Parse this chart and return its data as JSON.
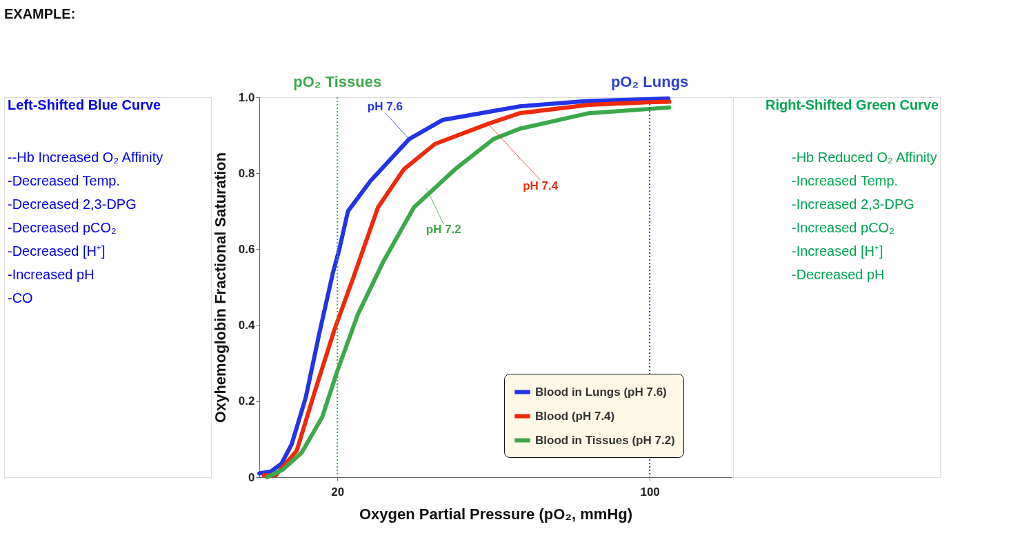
{
  "chart_data": {
    "type": "line",
    "xlabel": "Oxygen Partial Pressure (pO₂, mmHg)",
    "ylabel": "Oxyhemoglobin Fractional Saturation",
    "xlim": [
      0,
      121
    ],
    "ylim": [
      0,
      1
    ],
    "xticks": [
      20,
      100
    ],
    "yticks": [
      {
        "value": 0,
        "label": "0"
      },
      0.2,
      0.4,
      0.6,
      0.8,
      {
        "value": 1,
        "label": "1.0"
      }
    ],
    "grid": false,
    "legend": "bottom right",
    "line_style": "solid",
    "marker": "none",
    "series": [
      {
        "name": "Blood in Lungs (pH 7.6)",
        "color": "#2233e8",
        "x": [
          0,
          3,
          5.7,
          8.3,
          11.9,
          15.4,
          18.9,
          20.5,
          22.7,
          28.5,
          38.4,
          46.9,
          66.7,
          84,
          100,
          104.8
        ],
        "values": [
          0.01,
          0.015,
          0.036,
          0.087,
          0.21,
          0.38,
          0.54,
          0.6,
          0.7,
          0.78,
          0.89,
          0.94,
          0.976,
          0.99,
          0.995,
          0.997
        ]
      },
      {
        "name": "Blood (pH 7.4)",
        "color": "#ee2a0a",
        "x": [
          1.2,
          4.2,
          9.6,
          14.2,
          19.3,
          23.9,
          30.4,
          37,
          45,
          58.6,
          66.7,
          84.4,
          99.8,
          105
        ],
        "values": [
          0.005,
          0.005,
          0.07,
          0.225,
          0.39,
          0.52,
          0.71,
          0.81,
          0.877,
          0.93,
          0.958,
          0.98,
          0.987,
          0.988
        ]
      },
      {
        "name": "Blood in Tissues (pH 7.2)",
        "color": "#3ba94a",
        "x": [
          2,
          6,
          10.8,
          16.1,
          20,
          25.3,
          31.9,
          39.6,
          50.1,
          60,
          66.7,
          84.4,
          105
        ],
        "values": [
          0.0,
          0.02,
          0.064,
          0.158,
          0.28,
          0.43,
          0.57,
          0.71,
          0.81,
          0.89,
          0.917,
          0.958,
          0.973
        ]
      }
    ],
    "ref_lines": [
      {
        "axis": "x",
        "value": 20,
        "label": "pO₂ Tissues",
        "color": "#3ba94a",
        "line_style": "dotted"
      },
      {
        "axis": "x",
        "value": 100,
        "label": "pO₂ Lungs",
        "color": "#2b3fd0",
        "line_style": "dotted"
      }
    ],
    "annotations": [
      "EXAMPLE:",
      "Left-Shifted Blue Curve",
      "--Hb Increased O₂ Affinity",
      "-Decreased Temp.",
      "-Decreased 2,3-DPG",
      "-Decreased pCO₂",
      "-Decreased [H⁺]",
      "-Increased pH",
      "-CO",
      "Right-Shifted Green Curve",
      "-Hb Reduced O₂ Affinity",
      "-Increased Temp.",
      "-Increased 2,3-DPG",
      "-Increased pCO₂",
      "-Increased [H⁺]",
      "-Decreased pH",
      {
        "text": "pH 7.6",
        "x": 38.4,
        "y": 0.89
      },
      {
        "text": "pH 7.4",
        "x": 58.6,
        "y": 0.93
      },
      {
        "text": "pH 7.2",
        "x": 42.8,
        "y": 0.76
      }
    ]
  }
}
